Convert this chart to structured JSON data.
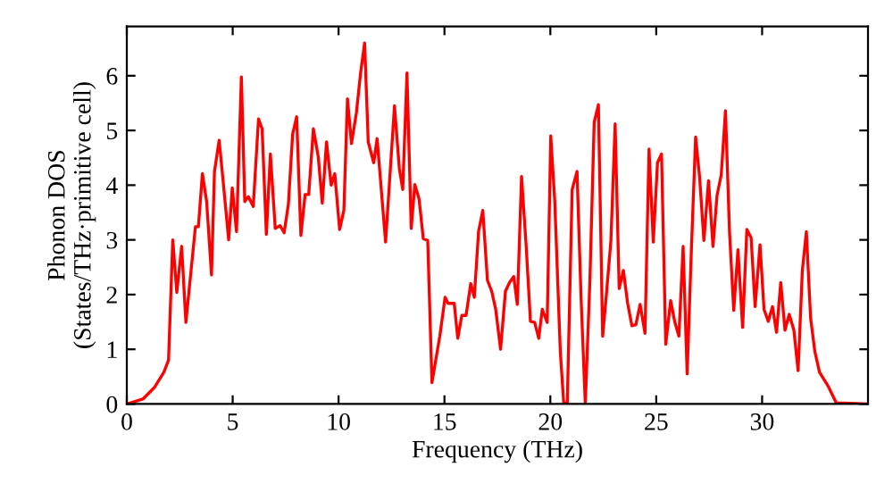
{
  "chart_data": {
    "type": "line",
    "xlabel": "Frequency (THz)",
    "ylabel": "Phonon DOS\n(States/THz·primitive cell)",
    "xlim": [
      0,
      35
    ],
    "ylim": [
      0,
      6.9
    ],
    "xticks": [
      0,
      5,
      10,
      15,
      20,
      25,
      30
    ],
    "yticks": [
      0,
      1,
      2,
      3,
      4,
      5,
      6
    ],
    "grid": false,
    "legend": false,
    "marker": "none",
    "line_style": "solid",
    "series": [
      {
        "color": "#ff0000",
        "x": [
          0,
          0.76,
          1.32,
          1.75,
          1.97,
          2.17,
          2.36,
          2.59,
          2.79,
          3.24,
          3.38,
          3.57,
          3.77,
          4.0,
          4.14,
          4.36,
          4.56,
          4.81,
          4.98,
          5.18,
          5.41,
          5.57,
          5.74,
          5.97,
          6.22,
          6.39,
          6.59,
          6.78,
          7.01,
          7.24,
          7.43,
          7.63,
          7.83,
          8.02,
          8.22,
          8.42,
          8.59,
          8.81,
          9.04,
          9.23,
          9.43,
          9.65,
          9.82,
          10.05,
          10.25,
          10.42,
          10.61,
          10.84,
          11.04,
          11.23,
          11.4,
          11.66,
          11.82,
          12.22,
          12.64,
          12.87,
          13.03,
          13.23,
          13.43,
          13.6,
          13.8,
          14.0,
          14.21,
          14.41,
          14.78,
          15.03,
          15.17,
          15.46,
          15.63,
          15.82,
          16.02,
          16.24,
          16.41,
          16.61,
          16.81,
          17.03,
          17.23,
          17.42,
          17.65,
          17.88,
          18.07,
          18.27,
          18.44,
          18.64,
          18.86,
          19.06,
          19.26,
          19.45,
          19.62,
          19.85,
          20.02,
          20.21,
          20.47,
          20.63,
          20.8,
          21.03,
          21.26,
          21.45,
          21.65,
          21.87,
          22.07,
          22.27,
          22.47,
          22.66,
          22.86,
          23.06,
          23.25,
          23.45,
          23.65,
          23.85,
          24.04,
          24.24,
          24.47,
          24.66,
          24.86,
          25.06,
          25.25,
          25.45,
          25.68,
          25.87,
          26.07,
          26.27,
          26.46,
          26.66,
          26.86,
          27.05,
          27.25,
          27.47,
          27.68,
          27.87,
          28.07,
          28.27,
          28.46,
          28.66,
          28.86,
          29.08,
          29.28,
          29.48,
          29.67,
          29.9,
          30.09,
          30.29,
          30.49,
          30.68,
          30.88,
          31.08,
          31.28,
          31.5,
          31.7,
          31.9,
          32.09,
          32.29,
          32.49,
          32.71,
          33.14,
          33.5,
          35.0
        ],
        "values": [
          0,
          0.09,
          0.31,
          0.58,
          0.8,
          3.0,
          2.04,
          2.88,
          1.49,
          3.24,
          3.24,
          4.21,
          3.7,
          2.36,
          4.25,
          4.82,
          4.03,
          3.0,
          3.95,
          3.15,
          5.98,
          3.7,
          3.79,
          3.61,
          5.21,
          5.03,
          3.1,
          4.57,
          3.21,
          3.26,
          3.13,
          3.65,
          4.93,
          5.25,
          3.08,
          3.83,
          3.83,
          5.03,
          4.52,
          3.67,
          4.79,
          4.0,
          4.21,
          3.19,
          3.54,
          5.58,
          4.76,
          5.32,
          6.05,
          6.6,
          4.79,
          4.41,
          4.85,
          2.96,
          5.45,
          4.3,
          3.92,
          6.05,
          3.21,
          4.01,
          3.75,
          3.02,
          2.99,
          0.39,
          1.24,
          1.95,
          1.84,
          1.84,
          1.2,
          1.62,
          1.62,
          2.2,
          1.95,
          3.15,
          3.54,
          2.26,
          2.06,
          1.73,
          1.0,
          2.06,
          2.22,
          2.33,
          1.82,
          4.16,
          2.88,
          1.51,
          1.49,
          1.2,
          1.73,
          1.49,
          4.9,
          3.7,
          0.96,
          0.03,
          0,
          3.92,
          4.25,
          1.95,
          0,
          2.28,
          5.15,
          5.47,
          1.24,
          2.06,
          2.99,
          5.12,
          2.11,
          2.44,
          1.84,
          1.43,
          1.45,
          1.82,
          1.29,
          4.66,
          2.96,
          4.41,
          4.57,
          1.09,
          1.89,
          1.51,
          1.24,
          2.88,
          0.55,
          2.82,
          4.88,
          4.14,
          2.99,
          4.08,
          2.88,
          3.81,
          4.19,
          5.36,
          3.15,
          1.71,
          2.82,
          1.4,
          3.19,
          3.04,
          1.78,
          2.91,
          1.73,
          1.51,
          1.78,
          1.31,
          2.22,
          1.35,
          1.64,
          1.35,
          0.61,
          2.44,
          3.15,
          1.57,
          0.96,
          0.58,
          0.31,
          0.02,
          0
        ]
      }
    ]
  }
}
